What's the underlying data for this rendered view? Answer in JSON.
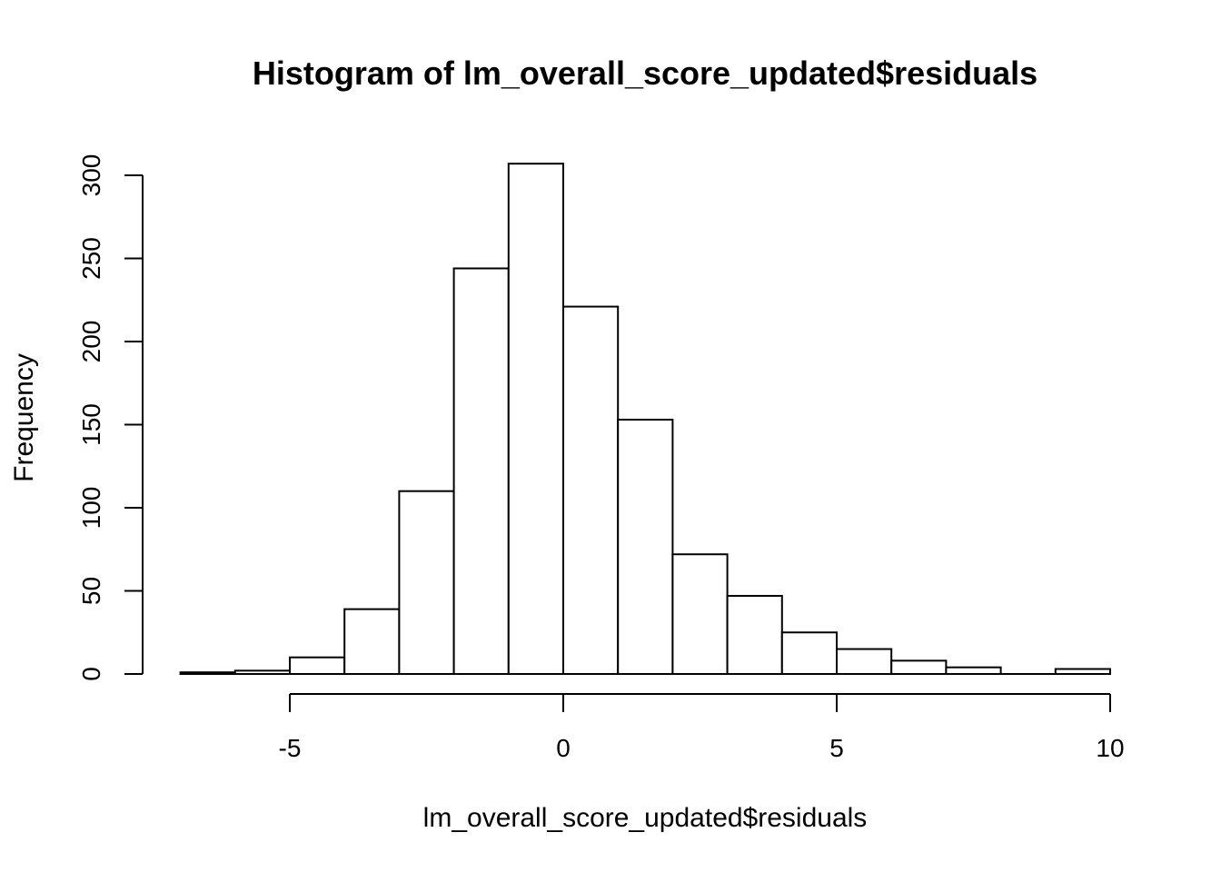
{
  "chart_data": {
    "type": "bar",
    "title": "Histogram of lm_overall_score_updated$residuals",
    "xlabel": "lm_overall_score_updated$residuals",
    "ylabel": "Frequency",
    "xlim": [
      -7,
      10
    ],
    "ylim": [
      0,
      307
    ],
    "x_ticks": [
      -5,
      0,
      5,
      10
    ],
    "y_ticks": [
      0,
      50,
      100,
      150,
      200,
      250,
      300
    ],
    "bin_edges": [
      -7,
      -6,
      -5,
      -4,
      -3,
      -2,
      -1,
      0,
      1,
      2,
      3,
      4,
      5,
      6,
      7,
      8,
      9,
      10
    ],
    "values": [
      1,
      2,
      10,
      39,
      110,
      244,
      307,
      221,
      153,
      72,
      47,
      25,
      15,
      8,
      4,
      0,
      3
    ],
    "grid": false,
    "colors": {
      "bar_fill": "#ffffff",
      "bar_stroke": "#000000"
    }
  }
}
